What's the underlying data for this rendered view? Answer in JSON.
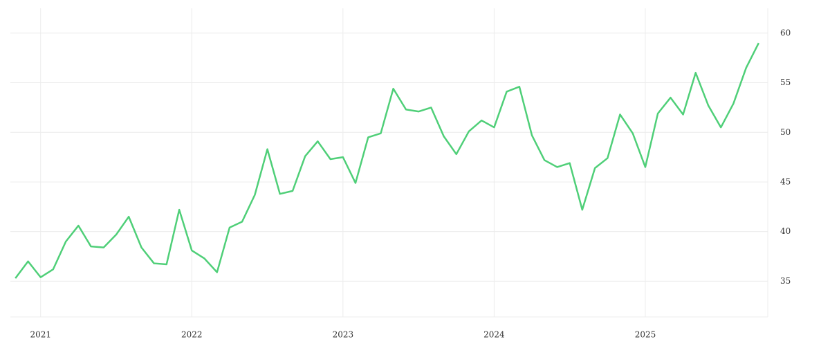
{
  "chart_data": {
    "type": "line",
    "x": [
      2020.833,
      2020.917,
      2021,
      2021.083,
      2021.167,
      2021.25,
      2021.333,
      2021.417,
      2021.5,
      2021.583,
      2021.667,
      2021.75,
      2021.833,
      2021.917,
      2022,
      2022.083,
      2022.167,
      2022.25,
      2022.333,
      2022.417,
      2022.5,
      2022.583,
      2022.667,
      2022.75,
      2022.833,
      2022.917,
      2023,
      2023.083,
      2023.167,
      2023.25,
      2023.333,
      2023.417,
      2023.5,
      2023.583,
      2023.667,
      2023.75,
      2023.833,
      2023.917,
      2024,
      2024.083,
      2024.167,
      2024.25,
      2024.333,
      2024.417,
      2024.5,
      2024.583,
      2024.667,
      2024.75,
      2024.833,
      2024.917,
      2025,
      2025.083,
      2025.167,
      2025.25,
      2025.333,
      2025.417,
      2025.5,
      2025.583,
      2025.667,
      2025.75
    ],
    "series": [
      {
        "color": "#4fcf78",
        "values": [
          35.3,
          37.0,
          35.4,
          36.2,
          39.0,
          40.6,
          38.5,
          38.4,
          39.7,
          41.5,
          38.4,
          36.8,
          36.7,
          42.2,
          38.1,
          37.3,
          35.9,
          40.4,
          41.0,
          43.7,
          48.3,
          43.8,
          44.1,
          47.6,
          49.1,
          47.3,
          47.5,
          44.9,
          49.5,
          49.9,
          54.4,
          52.3,
          52.1,
          52.5,
          49.6,
          47.8,
          50.1,
          51.2,
          50.5,
          54.1,
          54.6,
          49.7,
          47.2,
          46.5,
          46.9,
          42.2,
          46.4,
          47.4,
          51.8,
          49.9,
          46.5,
          51.9,
          53.5,
          51.8,
          56.0,
          52.7,
          50.5,
          52.9,
          56.5,
          59.0
        ]
      }
    ],
    "xlim": [
      2020.8,
      2025.81
    ],
    "xticks": [
      2021,
      2022,
      2023,
      2024,
      2025
    ],
    "ylim": [
      31.4,
      62.5
    ],
    "yticks": [
      35,
      40,
      45,
      50,
      55,
      60
    ],
    "grid": true
  }
}
